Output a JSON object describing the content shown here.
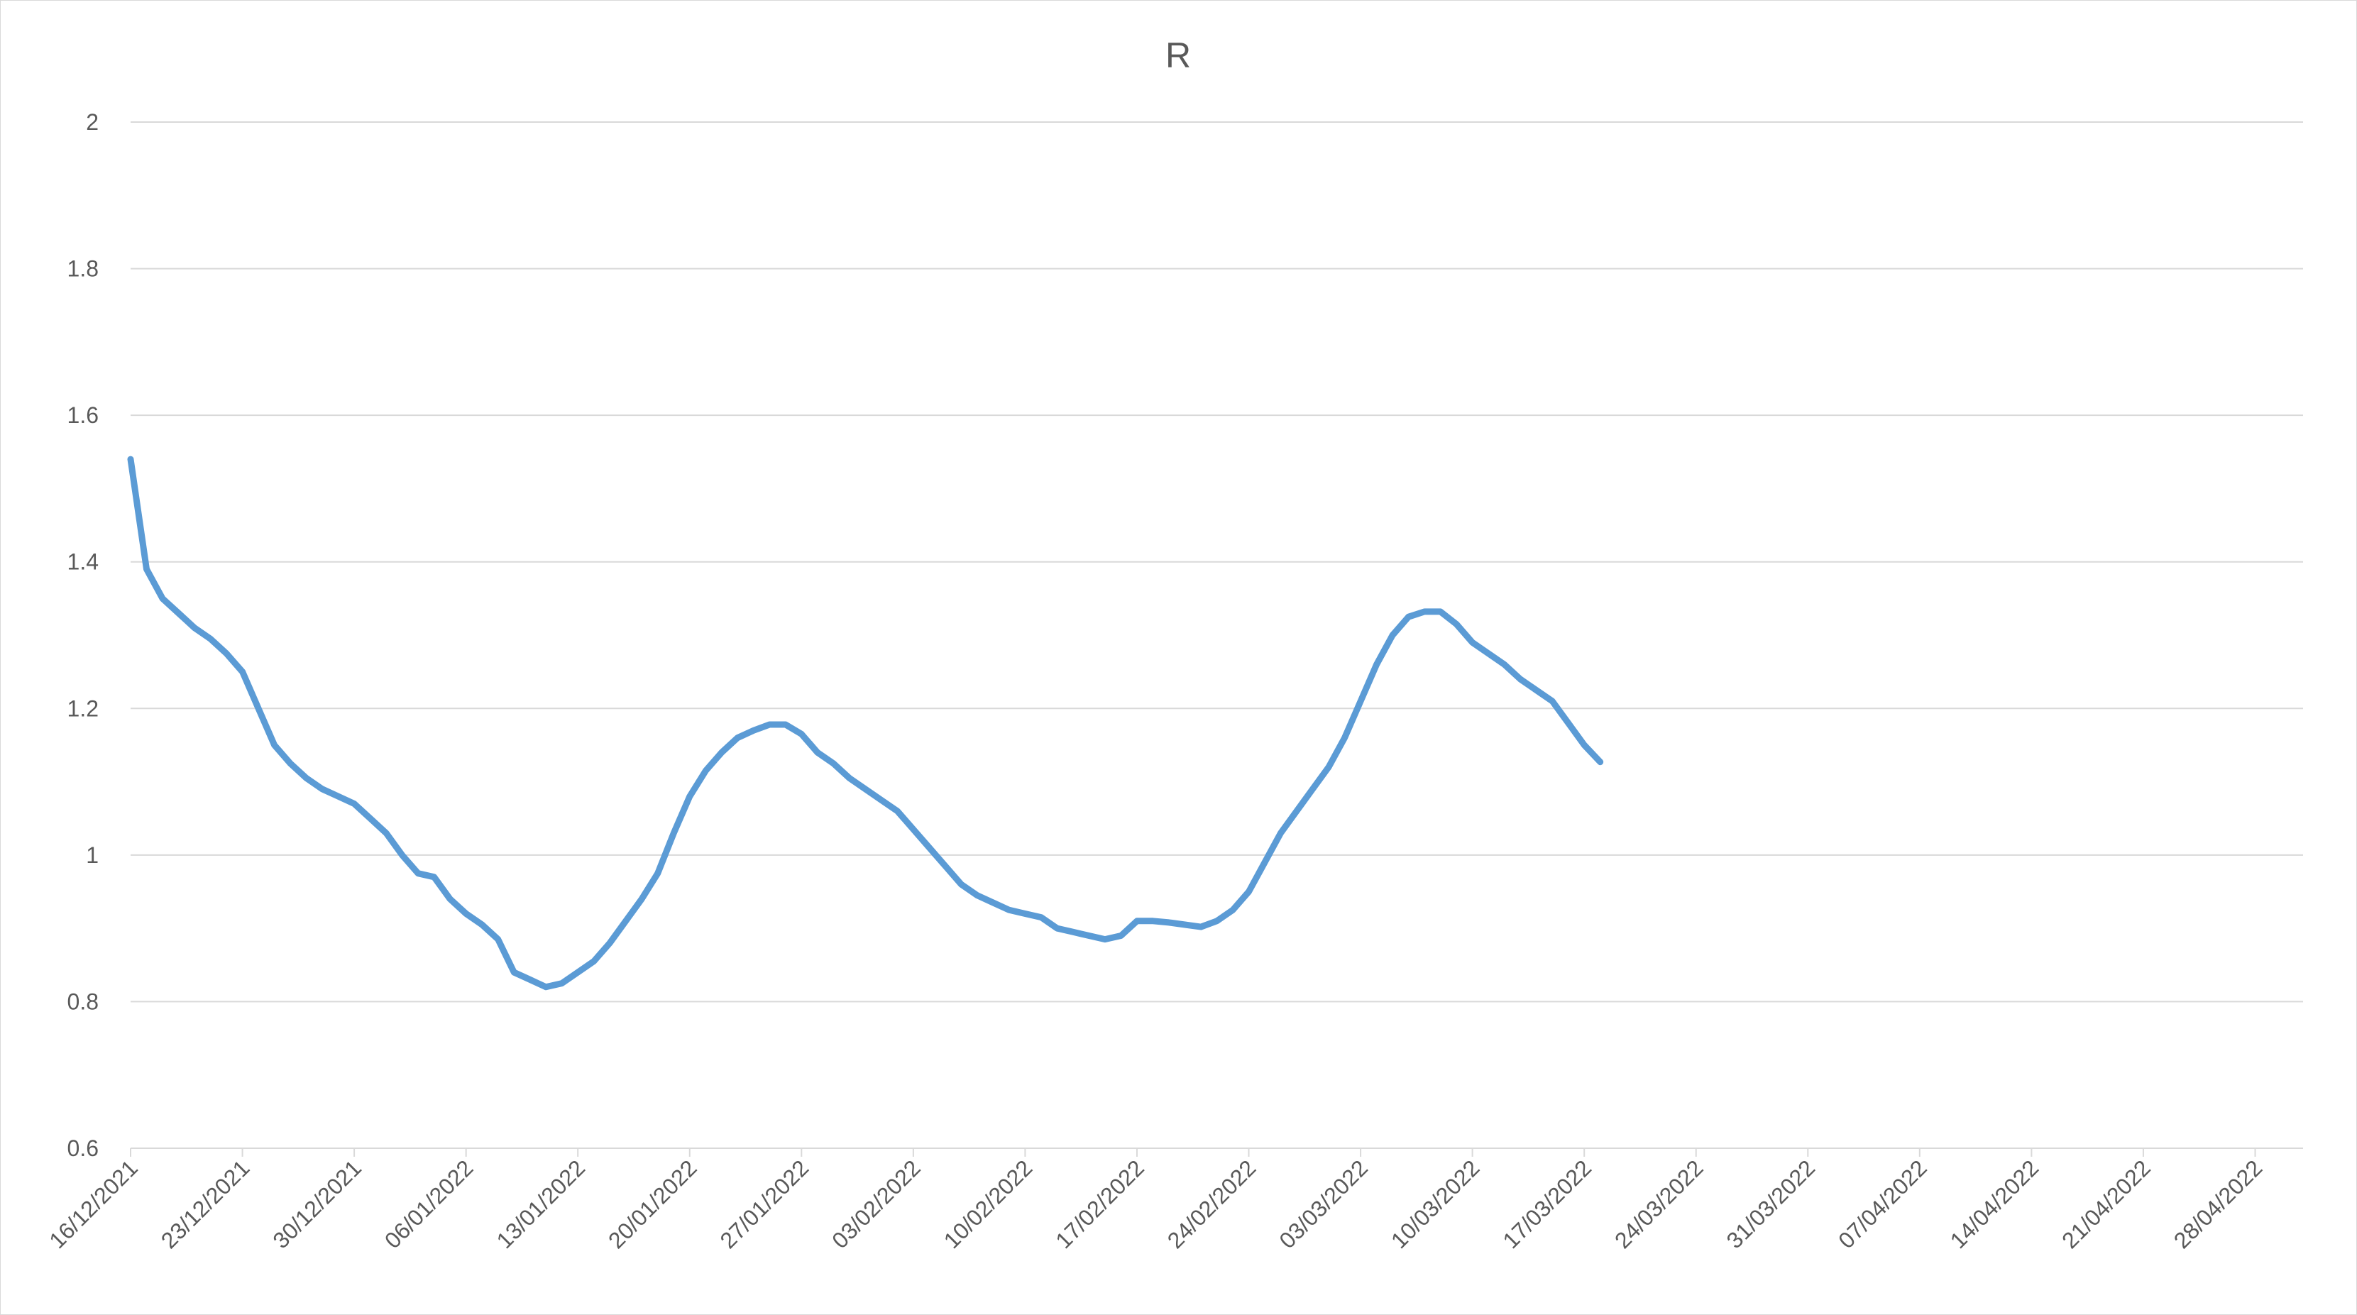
{
  "chart_data": {
    "type": "line",
    "title": "R",
    "xlabel": "",
    "ylabel": "",
    "ylim": [
      0.6,
      2
    ],
    "yticks": [
      "0.6",
      "0.8",
      "1",
      "1.2",
      "1.4",
      "1.6",
      "1.8",
      "2"
    ],
    "xlim": [
      "2021-12-16",
      "2022-05-01"
    ],
    "xticks": [
      {
        "date": "2021-12-16",
        "label": "16/12/2021"
      },
      {
        "date": "2021-12-23",
        "label": "23/12/2021"
      },
      {
        "date": "2021-12-30",
        "label": "30/12/2021"
      },
      {
        "date": "2022-01-06",
        "label": "06/01/2022"
      },
      {
        "date": "2022-01-13",
        "label": "13/01/2022"
      },
      {
        "date": "2022-01-20",
        "label": "20/01/2022"
      },
      {
        "date": "2022-01-27",
        "label": "27/01/2022"
      },
      {
        "date": "2022-02-03",
        "label": "03/02/2022"
      },
      {
        "date": "2022-02-10",
        "label": "10/02/2022"
      },
      {
        "date": "2022-02-17",
        "label": "17/02/2022"
      },
      {
        "date": "2022-02-24",
        "label": "24/02/2022"
      },
      {
        "date": "2022-03-03",
        "label": "03/03/2022"
      },
      {
        "date": "2022-03-10",
        "label": "10/03/2022"
      },
      {
        "date": "2022-03-17",
        "label": "17/03/2022"
      },
      {
        "date": "2022-03-24",
        "label": "24/03/2022"
      },
      {
        "date": "2022-03-31",
        "label": "31/03/2022"
      },
      {
        "date": "2022-04-07",
        "label": "07/04/2022"
      },
      {
        "date": "2022-04-14",
        "label": "14/04/2022"
      },
      {
        "date": "2022-04-21",
        "label": "21/04/2022"
      },
      {
        "date": "2022-04-28",
        "label": "28/04/2022"
      }
    ],
    "grid": "horizontal",
    "legend": "none",
    "line_color": "#5b9bd5",
    "grid_color": "#d9d9d9",
    "text_color": "#595959",
    "series": [
      {
        "x": [
          "2021-12-16",
          "2021-12-17",
          "2021-12-18",
          "2021-12-19",
          "2021-12-20",
          "2021-12-21",
          "2021-12-22",
          "2021-12-23",
          "2021-12-24",
          "2021-12-25",
          "2021-12-26",
          "2021-12-27",
          "2021-12-28",
          "2021-12-29",
          "2021-12-30",
          "2021-12-31",
          "2022-01-01",
          "2022-01-02",
          "2022-01-03",
          "2022-01-04",
          "2022-01-05",
          "2022-01-06",
          "2022-01-07",
          "2022-01-08",
          "2022-01-09",
          "2022-01-10",
          "2022-01-11",
          "2022-01-12",
          "2022-01-13",
          "2022-01-14",
          "2022-01-15",
          "2022-01-16",
          "2022-01-17",
          "2022-01-18",
          "2022-01-19",
          "2022-01-20",
          "2022-01-21",
          "2022-01-22",
          "2022-01-23",
          "2022-01-24",
          "2022-01-25",
          "2022-01-26",
          "2022-01-27",
          "2022-01-28",
          "2022-01-29",
          "2022-01-30",
          "2022-01-31",
          "2022-02-01",
          "2022-02-02",
          "2022-02-03",
          "2022-02-04",
          "2022-02-05",
          "2022-02-06",
          "2022-02-07",
          "2022-02-08",
          "2022-02-09",
          "2022-02-10",
          "2022-02-11",
          "2022-02-12",
          "2022-02-13",
          "2022-02-14",
          "2022-02-15",
          "2022-02-16",
          "2022-02-17",
          "2022-02-18",
          "2022-02-19",
          "2022-02-20",
          "2022-02-21",
          "2022-02-22",
          "2022-02-23",
          "2022-02-24",
          "2022-02-25",
          "2022-02-26",
          "2022-02-27",
          "2022-02-28",
          "2022-03-01",
          "2022-03-02",
          "2022-03-03",
          "2022-03-04",
          "2022-03-05",
          "2022-03-06",
          "2022-03-07",
          "2022-03-08",
          "2022-03-09",
          "2022-03-10",
          "2022-03-11",
          "2022-03-12",
          "2022-03-13",
          "2022-03-14",
          "2022-03-15",
          "2022-03-16",
          "2022-03-17",
          "2022-03-18"
        ],
        "values": [
          1.54,
          1.39,
          1.35,
          1.33,
          1.31,
          1.295,
          1.275,
          1.25,
          1.2,
          1.15,
          1.125,
          1.105,
          1.09,
          1.08,
          1.07,
          1.05,
          1.03,
          1.0,
          0.975,
          0.97,
          0.94,
          0.92,
          0.905,
          0.885,
          0.84,
          0.83,
          0.82,
          0.825,
          0.84,
          0.855,
          0.88,
          0.91,
          0.94,
          0.975,
          1.03,
          1.08,
          1.115,
          1.14,
          1.16,
          1.17,
          1.178,
          1.178,
          1.165,
          1.14,
          1.125,
          1.105,
          1.09,
          1.075,
          1.06,
          1.035,
          1.01,
          0.985,
          0.96,
          0.945,
          0.935,
          0.925,
          0.92,
          0.915,
          0.9,
          0.895,
          0.89,
          0.885,
          0.89,
          0.91,
          0.91,
          0.908,
          0.905,
          0.902,
          0.91,
          0.925,
          0.95,
          0.99,
          1.03,
          1.06,
          1.09,
          1.12,
          1.16,
          1.21,
          1.26,
          1.3,
          1.325,
          1.332,
          1.332,
          1.315,
          1.29,
          1.275,
          1.26,
          1.24,
          1.225,
          1.21,
          1.18,
          1.15,
          1.127
        ]
      }
    ]
  }
}
